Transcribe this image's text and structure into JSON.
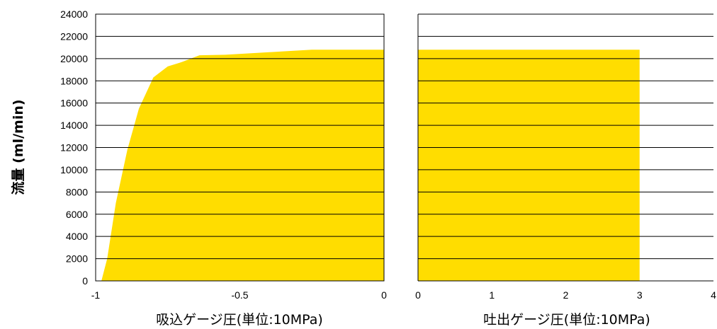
{
  "chart_data": [
    {
      "type": "area",
      "ylabel": "流量 (ml/min)",
      "xlabel": "吸込ゲージ圧(単位:10MPa)",
      "xlim": [
        -1,
        0
      ],
      "ylim": [
        0,
        24000
      ],
      "x_ticks": [
        "-1",
        "-0.5",
        "0"
      ],
      "y_ticks": [
        "0",
        "2000",
        "4000",
        "6000",
        "8000",
        "10000",
        "12000",
        "14000",
        "16000",
        "18000",
        "20000",
        "22000",
        "24000"
      ],
      "grid": "horizontal",
      "fill_color": "#FFDD00",
      "series": [
        {
          "x": [
            -0.98,
            -0.96,
            -0.93,
            -0.89,
            -0.85,
            -0.8,
            -0.75,
            -0.7,
            -0.64,
            -0.55,
            -0.45,
            -0.35,
            -0.25,
            0
          ],
          "values": [
            0,
            2000,
            7000,
            11800,
            15500,
            18300,
            19300,
            19700,
            20300,
            20350,
            20500,
            20650,
            20800,
            20800
          ]
        }
      ]
    },
    {
      "type": "area",
      "xlabel": "吐出ゲージ圧(単位:10MPa)",
      "xlim": [
        0,
        4
      ],
      "ylim": [
        0,
        24000
      ],
      "x_ticks": [
        "0",
        "1",
        "2",
        "3",
        "4"
      ],
      "grid": "horizontal",
      "fill_color": "#FFDD00",
      "series": [
        {
          "x": [
            0,
            3
          ],
          "values": [
            20800,
            20800
          ]
        }
      ]
    }
  ]
}
